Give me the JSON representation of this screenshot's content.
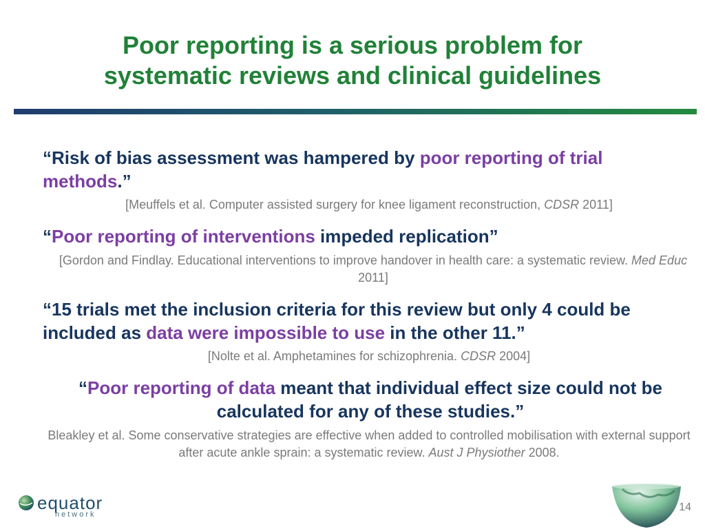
{
  "title": {
    "line1": "Poor reporting is a serious problem for",
    "line2": "systematic reviews and clinical guidelines"
  },
  "quotes": [
    {
      "pre": "“Risk of bias assessment was hampered by ",
      "highlight": "poor reporting of trial methods",
      "post": ".”",
      "citation_pre": "[Meuffels et al. Computer assisted surgery for knee ligament reconstruction, ",
      "citation_journal": "CDSR",
      "citation_post": " 2011]"
    },
    {
      "pre": "“",
      "highlight": "Poor reporting of interventions",
      "post": " impeded replication”",
      "citation_pre": "[Gordon and Findlay. Educational interventions to improve handover in health care: a systematic review. ",
      "citation_journal": "Med Educ",
      "citation_post": " 2011]"
    },
    {
      "pre": "“15 trials met the inclusion criteria for this review but only 4 could be included as ",
      "highlight": "data were impossible to use",
      "post": " in the other 11.”",
      "citation_pre": "[Nolte et al. Amphetamines for schizophrenia. ",
      "citation_journal": "CDSR",
      "citation_post": " 2004]"
    },
    {
      "pre": "“",
      "highlight": "Poor reporting of data",
      "post": " meant that individual effect size could not be calculated for any of these studies.”",
      "citation_pre": "Bleakley et al. Some conservative strategies are effective when added to controlled mobilisation with external support after acute ankle sprain: a systematic review. ",
      "citation_journal": "Aust J Physiother",
      "citation_post": " 2008."
    }
  ],
  "logo": {
    "name": "equator",
    "sub": "network"
  },
  "page_number": "14",
  "colors": {
    "title": "#218138",
    "quote": "#17355e",
    "highlight": "#7b3fa3",
    "citation": "#7a7a7a"
  },
  "icons": [
    "equator-logo-icon",
    "globe-icon"
  ]
}
